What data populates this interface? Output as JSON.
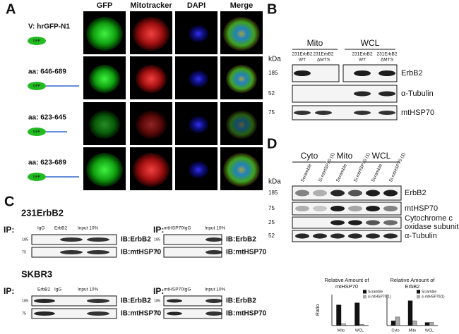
{
  "panel_a": {
    "label": "A",
    "columns": [
      "GFP",
      "Mitotracker",
      "DAPI",
      "Merge"
    ],
    "rows": [
      "V: hrGFP-N1",
      "aa: 646-689",
      "aa: 623-645",
      "aa: 623-689"
    ],
    "icon_text": "GFP"
  },
  "panel_b": {
    "label": "B",
    "kda_label": "kDa",
    "groups": [
      "Mito",
      "WCL"
    ],
    "lanes": [
      [
        "231ErbB2",
        "WT"
      ],
      [
        "231ErbB2",
        "ΔMTS"
      ],
      [
        "231ErbB2",
        "WT"
      ],
      [
        "231ErbB2",
        "ΔMTS"
      ]
    ],
    "rows": [
      {
        "marker": "185",
        "protein": "ErbB2"
      },
      {
        "marker": "52",
        "protein": "α-Tubulin"
      },
      {
        "marker": "75",
        "protein": "mtHSP70"
      }
    ]
  },
  "panel_c": {
    "label": "C",
    "blocks": [
      {
        "title": "231ErbB2",
        "ips": [
          {
            "ip": "IP:",
            "lanes": [
              "IgG",
              "ErbB2",
              "Input 10%"
            ],
            "markers": [
              "185",
              "75"
            ],
            "ib": [
              "IB:ErbB2",
              "IB:mtHSP70"
            ]
          },
          {
            "ip": "IP:",
            "lanes": [
              "mtHSP70",
              "IgG",
              "Input 10%"
            ],
            "markers": [
              "185",
              "75"
            ],
            "ib": [
              "IB:ErbB2",
              "IB:mtHSP70"
            ]
          }
        ]
      },
      {
        "title": "SKBR3",
        "ips": [
          {
            "ip": "IP:",
            "lanes": [
              "ErbB2",
              "IgG",
              "Input 10%"
            ],
            "markers": [
              "185",
              "75"
            ],
            "ib": [
              "IB:ErbB2",
              "IB:mtHSP70"
            ]
          },
          {
            "ip": "IP:",
            "lanes": [
              "mtHSP70",
              "IgG",
              "Input 10%"
            ],
            "markers": [
              "185",
              "75"
            ],
            "ib": [
              "IB:ErbB2",
              "IB:mtHSP70"
            ]
          }
        ]
      }
    ]
  },
  "panel_d": {
    "label": "D",
    "kda_label": "kDa",
    "groups": [
      "Cyto",
      "Mito",
      "WCL"
    ],
    "lanes": [
      "Scramble",
      "Si mtHSP70 (1)",
      "Scramble",
      "Si mtHSP70 (1)",
      "Scramble",
      "Si mtHSP70 (1)"
    ],
    "rows": [
      {
        "marker": "185",
        "protein": [
          "ErbB2"
        ]
      },
      {
        "marker": "75",
        "protein": [
          "mtHSP70"
        ]
      },
      {
        "marker": "25",
        "protein": [
          "Cytochrome c",
          "oxidase subunit II"
        ]
      },
      {
        "marker": "52",
        "protein": [
          "α-Tubulin"
        ]
      }
    ]
  },
  "chart_data": [
    {
      "type": "bar",
      "title": [
        "Relative Amount of",
        "mtHSP70"
      ],
      "y_label": "Ratio",
      "categories": [
        "Mito",
        "WCL"
      ],
      "series": [
        {
          "name": "Scramble",
          "color": "#111111",
          "values": [
            1.0,
            1.1
          ]
        },
        {
          "name": "si mtHSP70(1)",
          "color": "#aaaaaa",
          "values": [
            0.08,
            0.05
          ]
        }
      ],
      "ylim": [
        0,
        1.5
      ]
    },
    {
      "type": "bar",
      "title": [
        "Relative Amount of",
        "ErbB2"
      ],
      "categories": [
        "Cyto",
        "Mito",
        "WCL"
      ],
      "series": [
        {
          "name": "Scramble",
          "color": "#111111",
          "values": [
            0.3,
            1.6,
            0.2
          ]
        },
        {
          "name": "si mtHSP70(1)",
          "color": "#aaaaaa",
          "values": [
            0.55,
            0.3,
            0.2
          ]
        }
      ],
      "ylim": [
        0,
        2
      ]
    }
  ]
}
